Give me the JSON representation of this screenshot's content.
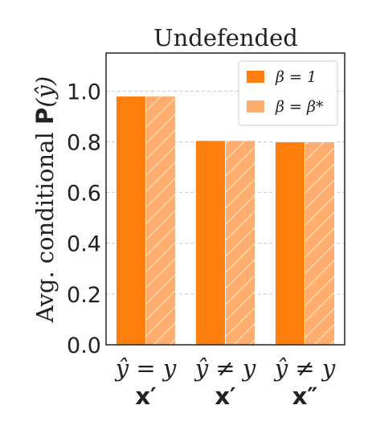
{
  "chart_data": {
    "type": "bar",
    "title": "Undefended",
    "ylabel": "Avg. conditional P(ŷ)",
    "ylim": [
      0,
      1.15
    ],
    "yticks": [
      "0.0",
      "0.2",
      "0.4",
      "0.6",
      "0.8",
      "1.0"
    ],
    "grid": "horizontal dashed",
    "legend_position": "top-right",
    "categories": [
      {
        "line1": "ŷ = y",
        "line2": "x′"
      },
      {
        "line1": "ŷ ≠ y",
        "line2": "x′"
      },
      {
        "line1": "ŷ ≠ y",
        "line2": "x″"
      }
    ],
    "series": [
      {
        "name": "β = 1",
        "values": [
          0.98,
          0.805,
          0.8
        ],
        "color": "#ff7f0e",
        "hatch": false
      },
      {
        "name": "β = β*",
        "values": [
          0.98,
          0.805,
          0.8
        ],
        "color": "#ffad6e",
        "hatch": true
      }
    ]
  }
}
